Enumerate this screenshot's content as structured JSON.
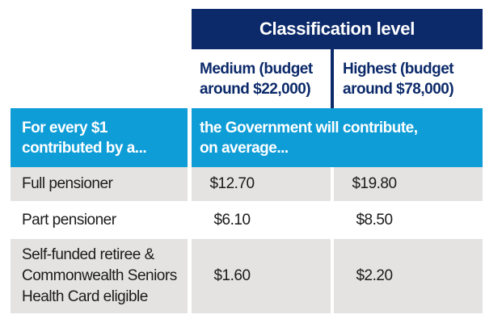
{
  "colors": {
    "navy": "#0c2a6a",
    "light_blue": "#0f9dd7",
    "row_shade_gray": "#e4e3e2",
    "header_text": "#ffffff",
    "body_text": "#1b1b1b"
  },
  "table": {
    "title": "Classification level",
    "columns": [
      {
        "line1": "Medium (budget",
        "line2": "around $22,000)"
      },
      {
        "line1": "Highest (budget",
        "line2": "around $78,000)"
      }
    ],
    "subheader": {
      "left_line1": "For every $1",
      "left_line2": "contributed by a...",
      "right_line1": "the Government will contribute,",
      "right_line2": "on average..."
    },
    "rows": [
      {
        "label": "Full pensioner",
        "medium": "$12.70",
        "highest": "$19.80"
      },
      {
        "label": "Part pensioner",
        "medium": "$6.10",
        "highest": "$8.50"
      },
      {
        "label_line1": "Self-funded retiree &",
        "label_line2": "Commonwealth Seniors",
        "label_line3": "Health Card eligible",
        "medium": "$1.60",
        "highest": "$2.20"
      }
    ]
  },
  "chart_data": {
    "type": "table",
    "title": "Classification level",
    "columns": [
      "For every $1 contributed by a...",
      "Medium (budget around $22,000)",
      "Highest (budget around $78,000)"
    ],
    "rows": [
      [
        "Full pensioner",
        "$12.70",
        "$19.80"
      ],
      [
        "Part pensioner",
        "$6.10",
        "$8.50"
      ],
      [
        "Self-funded retiree & Commonwealth Seniors Health Card eligible",
        "$1.60",
        "$2.20"
      ]
    ],
    "note": "the Government will contribute, on average..."
  }
}
